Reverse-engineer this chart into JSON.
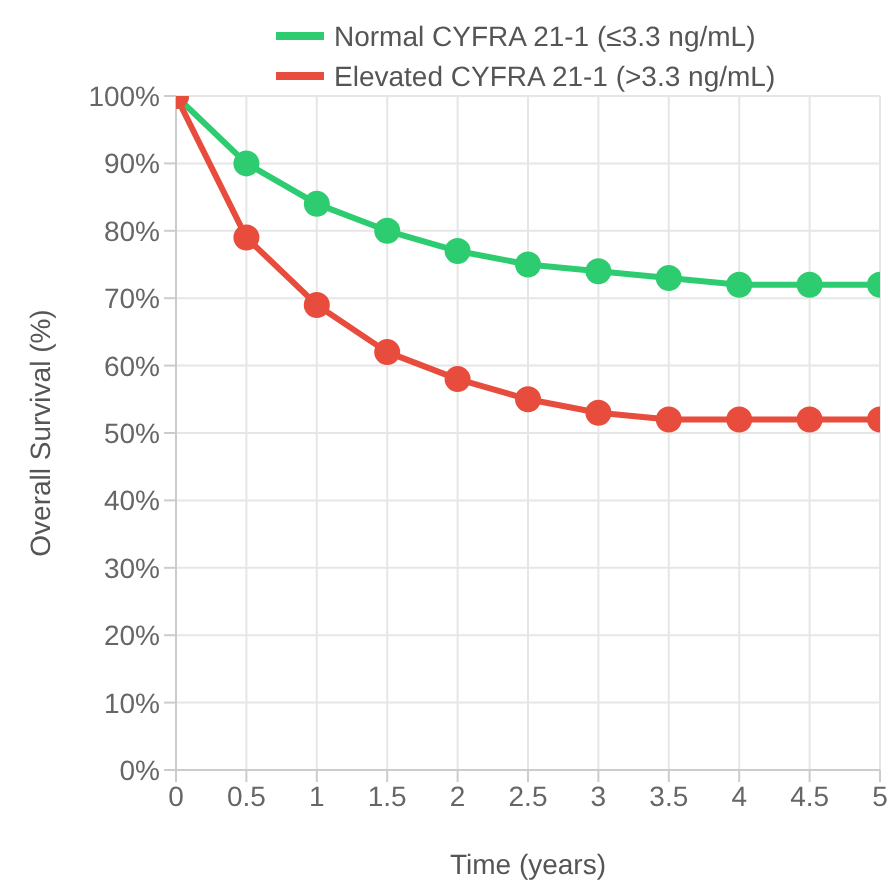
{
  "chart_data": {
    "type": "line",
    "xlabel": "Time (years)",
    "ylabel": "Overall Survival (%)",
    "x": [
      0,
      0.5,
      1,
      1.5,
      2,
      2.5,
      3,
      3.5,
      4,
      4.5,
      5
    ],
    "series": [
      {
        "name": "Normal CYFRA 21-1 (≤3.3 ng/mL)",
        "color": "#2ecc71",
        "values": [
          100,
          90,
          84,
          80,
          77,
          75,
          74,
          73,
          72,
          72,
          72
        ]
      },
      {
        "name": "Elevated CYFRA 21-1 (>3.3 ng/mL)",
        "color": "#e74c3c",
        "values": [
          100,
          79,
          69,
          62,
          58,
          55,
          53,
          52,
          52,
          52,
          52
        ]
      }
    ],
    "xlim": [
      0,
      5
    ],
    "xticks": [
      0,
      0.5,
      1,
      1.5,
      2,
      2.5,
      3,
      3.5,
      4,
      4.5,
      5
    ],
    "ylim": [
      0,
      100
    ],
    "yticks": [
      {
        "value": 0,
        "label": "0%"
      },
      {
        "value": 10,
        "label": "10%"
      },
      {
        "value": 20,
        "label": "20%"
      },
      {
        "value": 30,
        "label": "30%"
      },
      {
        "value": 40,
        "label": "40%"
      },
      {
        "value": 50,
        "label": "50%"
      },
      {
        "value": 60,
        "label": "60%"
      },
      {
        "value": 70,
        "label": "70%"
      },
      {
        "value": 80,
        "label": "80%"
      },
      {
        "value": 90,
        "label": "90%"
      },
      {
        "value": 100,
        "label": "100%"
      }
    ],
    "grid": true,
    "legend": "top",
    "marker": "circle",
    "line_style": "solid"
  }
}
